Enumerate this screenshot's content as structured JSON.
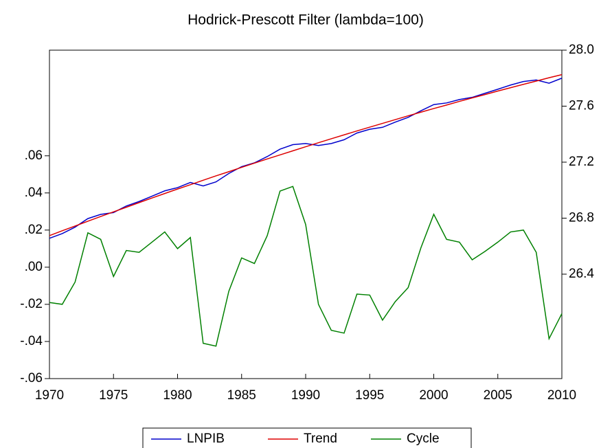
{
  "chart_data": {
    "type": "line",
    "title": "Hodrick-Prescott Filter (lambda=100)",
    "x": [
      1970,
      1971,
      1972,
      1973,
      1974,
      1975,
      1976,
      1977,
      1978,
      1979,
      1980,
      1981,
      1982,
      1983,
      1984,
      1985,
      1986,
      1987,
      1988,
      1989,
      1990,
      1991,
      1992,
      1993,
      1994,
      1995,
      1996,
      1997,
      1998,
      1999,
      2000,
      2001,
      2002,
      2003,
      2004,
      2005,
      2006,
      2007,
      2008,
      2009,
      2010
    ],
    "xlim": [
      1970,
      2010
    ],
    "xticks": [
      1970,
      1975,
      1980,
      1985,
      1990,
      1995,
      2000,
      2005,
      2010
    ],
    "ylim": [
      -0.06,
      0.1169
    ],
    "yticks": [
      {
        "value": -0.06,
        "label": "-.06"
      },
      {
        "value": -0.04,
        "label": "-.04"
      },
      {
        "value": -0.02,
        "label": "-.02"
      },
      {
        "value": 0,
        "label": ".00"
      },
      {
        "value": 0.02,
        "label": ".02"
      },
      {
        "value": 0.04,
        "label": ".04"
      },
      {
        "value": 0.06,
        "label": ".06"
      }
    ],
    "y2lim": [
      25.654,
      28.0
    ],
    "y2ticks": [
      26.4,
      26.8,
      27.2,
      27.6,
      {
        "value": 28.0,
        "label": "28.0"
      }
    ],
    "legend": "bottom",
    "series": [
      {
        "name": "LNPIB",
        "color": "#0000cc",
        "axis": "y2",
        "values": [
          26.656,
          26.69,
          26.736,
          26.797,
          26.827,
          26.84,
          26.887,
          26.919,
          26.957,
          26.995,
          27.018,
          27.055,
          27.03,
          27.059,
          27.119,
          27.168,
          27.195,
          27.24,
          27.293,
          27.325,
          27.333,
          27.319,
          27.333,
          27.36,
          27.408,
          27.435,
          27.449,
          27.486,
          27.52,
          27.567,
          27.611,
          27.623,
          27.647,
          27.663,
          27.692,
          27.721,
          27.751,
          27.776,
          27.787,
          27.764,
          27.8
        ]
      },
      {
        "name": "Trend",
        "color": "#dd0000",
        "axis": "y2",
        "values": [
          26.675,
          26.71,
          26.744,
          26.778,
          26.812,
          26.845,
          26.878,
          26.911,
          26.944,
          26.976,
          27.008,
          27.039,
          27.071,
          27.102,
          27.132,
          27.163,
          27.193,
          27.223,
          27.252,
          27.281,
          27.31,
          27.339,
          27.367,
          27.395,
          27.423,
          27.45,
          27.477,
          27.504,
          27.531,
          27.557,
          27.583,
          27.608,
          27.634,
          27.659,
          27.683,
          27.708,
          27.732,
          27.756,
          27.779,
          27.803,
          27.825
        ]
      },
      {
        "name": "Cycle",
        "color": "#008000",
        "values": [
          -0.019,
          -0.02,
          -0.008,
          0.0185,
          0.015,
          -0.005,
          0.009,
          0.008,
          0.0135,
          0.019,
          0.01,
          0.016,
          -0.041,
          -0.0425,
          -0.013,
          0.005,
          0.002,
          0.017,
          0.041,
          0.0435,
          0.023,
          -0.02,
          -0.034,
          -0.0355,
          -0.0145,
          -0.015,
          -0.0285,
          -0.0185,
          -0.011,
          0.0105,
          0.0285,
          0.015,
          0.0135,
          0.004,
          0.0085,
          0.0135,
          0.019,
          0.02,
          0.008,
          -0.0385,
          -0.025
        ]
      }
    ]
  }
}
